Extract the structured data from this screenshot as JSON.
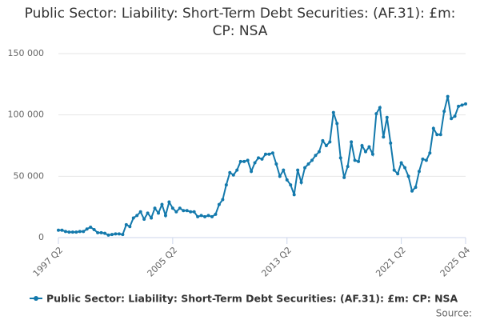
{
  "chart_data": {
    "type": "line",
    "title": "Public Sector: Liability: Short-Term Debt Securities: (AF.31): £m: CP: NSA",
    "source": "Source:",
    "categories": [
      "1997 Q2",
      null,
      null,
      null,
      null,
      null,
      null,
      null,
      null,
      null,
      null,
      null,
      null,
      null,
      null,
      null,
      null,
      null,
      null,
      null,
      null,
      null,
      null,
      null,
      null,
      null,
      null,
      null,
      null,
      null,
      null,
      null,
      "2005 Q2",
      null,
      null,
      null,
      null,
      null,
      null,
      null,
      null,
      null,
      null,
      null,
      null,
      null,
      null,
      null,
      null,
      null,
      null,
      null,
      null,
      null,
      null,
      null,
      null,
      null,
      null,
      null,
      null,
      null,
      null,
      null,
      "2013 Q2",
      null,
      null,
      null,
      null,
      null,
      null,
      null,
      null,
      null,
      null,
      null,
      null,
      null,
      null,
      null,
      null,
      null,
      null,
      null,
      null,
      null,
      null,
      null,
      null,
      null,
      null,
      null,
      null,
      null,
      null,
      null,
      "2021 Q2",
      null,
      null,
      null,
      null,
      null,
      null,
      null,
      null,
      null,
      null,
      null,
      null,
      null,
      null,
      null,
      null,
      null,
      "2025 Q4"
    ],
    "series": [
      {
        "name": "Public Sector: Liability: Short-Term Debt Securities: (AF.31): £m: CP: NSA",
        "color": "#1379ac",
        "values": [
          6000,
          6000,
          5000,
          4500,
          4500,
          4500,
          5000,
          5000,
          7000,
          8500,
          6500,
          4000,
          4000,
          3500,
          2000,
          2500,
          3000,
          3000,
          2500,
          10500,
          9000,
          16000,
          18000,
          21000,
          15000,
          20000,
          16000,
          24000,
          20000,
          27000,
          18000,
          29000,
          24000,
          21000,
          24000,
          22000,
          22000,
          21000,
          21000,
          17000,
          18000,
          17000,
          18000,
          17000,
          19000,
          27000,
          31000,
          43000,
          53000,
          51000,
          55000,
          62000,
          62000,
          63000,
          54000,
          61000,
          65000,
          64000,
          68000,
          68000,
          69000,
          60000,
          50000,
          55000,
          47000,
          43000,
          35000,
          55000,
          45000,
          57000,
          60000,
          63000,
          67000,
          70000,
          79000,
          75000,
          78000,
          102000,
          93000,
          65000,
          49000,
          58000,
          78000,
          63000,
          62000,
          75000,
          70000,
          74000,
          68000,
          101000,
          106000,
          82000,
          98000,
          77000,
          55000,
          52000,
          61000,
          57000,
          50000,
          38000,
          41000,
          54000,
          64000,
          63000,
          69000,
          89000,
          84000,
          84000,
          103000,
          115000,
          97000,
          99000,
          107000,
          108000,
          109000
        ]
      }
    ],
    "ylim": [
      0,
      150000
    ],
    "yticks": [
      0,
      {
        "value": 50000,
        "label": "50 000"
      },
      {
        "value": 100000,
        "label": "100 000"
      },
      {
        "value": 150000,
        "label": "150 000"
      }
    ],
    "grid": true
  }
}
